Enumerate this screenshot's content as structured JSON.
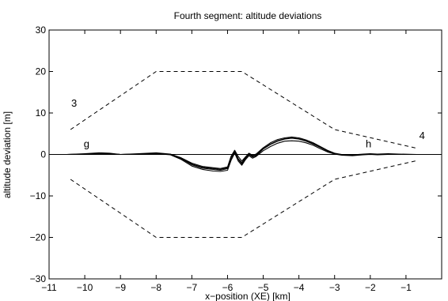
{
  "chart_data": {
    "type": "line",
    "title": "Fourth segment: altitude deviations",
    "xlabel": "x−position (XE)  [km]",
    "ylabel": "altitude deviation  [m]",
    "xlim": [
      -11,
      0
    ],
    "ylim": [
      -30,
      30
    ],
    "x_ticks": [
      -11,
      -10,
      -9,
      -8,
      -7,
      -6,
      -5,
      -4,
      -3,
      -2,
      -1
    ],
    "x_tick_labels": [
      "−11",
      "−10",
      "−9",
      "−8",
      "−7",
      "−6",
      "−5",
      "−4",
      "−3",
      "−2",
      "−1"
    ],
    "y_ticks": [
      -30,
      -20,
      -10,
      0,
      10,
      20,
      30
    ],
    "y_tick_labels": [
      "−30",
      "−20",
      "−10",
      "0",
      "10",
      "20",
      "30"
    ],
    "grid": false,
    "envelope": {
      "upper": {
        "x": [
          -10.4,
          -8.0,
          -5.6,
          -3.0,
          -0.7
        ],
        "y": [
          6,
          20,
          20,
          6,
          1.5
        ]
      },
      "lower": {
        "x": [
          -10.4,
          -8.0,
          -5.6,
          -3.0,
          -0.7
        ],
        "y": [
          -6,
          -20,
          -20,
          -6,
          -1.5
        ]
      }
    },
    "reference_line": {
      "y": 0
    },
    "series": [
      {
        "x": [
          -11.0,
          -10.5,
          -10.0,
          -9.6,
          -9.3,
          -9.0,
          -8.5,
          -8.0,
          -7.6,
          -7.3,
          -7.0,
          -6.7,
          -6.4,
          -6.2,
          -6.0,
          -5.9,
          -5.8,
          -5.7,
          -5.6,
          -5.5,
          -5.4,
          -5.3,
          -5.2,
          -5.0,
          -4.8,
          -4.6,
          -4.4,
          -4.2,
          -4.0,
          -3.8,
          -3.6,
          -3.4,
          -3.2,
          -3.0,
          -2.8,
          -2.5,
          -2.2,
          -2.0,
          -1.8,
          -1.5,
          -1.2,
          -0.7
        ],
        "y": [
          0,
          0,
          0.1,
          0.3,
          0.2,
          0,
          0.1,
          0.3,
          0,
          -1.0,
          -2.5,
          -3.3,
          -3.6,
          -3.8,
          -3.4,
          -1.0,
          0.6,
          -1.2,
          -2.3,
          -1.0,
          0,
          -0.6,
          -0.3,
          1.3,
          2.4,
          3.2,
          3.7,
          3.9,
          3.7,
          3.2,
          2.5,
          1.7,
          0.8,
          0.2,
          -0.1,
          -0.2,
          0,
          0.1,
          0,
          0.1,
          0,
          0
        ]
      },
      {
        "x": [
          -11.0,
          -10.5,
          -10.0,
          -9.6,
          -9.3,
          -9.0,
          -8.5,
          -8.0,
          -7.6,
          -7.3,
          -7.0,
          -6.7,
          -6.4,
          -6.2,
          -6.0,
          -5.9,
          -5.8,
          -5.7,
          -5.6,
          -5.5,
          -5.4,
          -5.3,
          -5.2,
          -5.0,
          -4.8,
          -4.6,
          -4.4,
          -4.2,
          -4.0,
          -3.8,
          -3.6,
          -3.4,
          -3.2,
          -3.0,
          -2.8,
          -2.5,
          -2.2,
          -2.0,
          -1.8,
          -1.5,
          -1.2,
          -0.7
        ],
        "y": [
          0,
          0,
          0.2,
          0.4,
          0.3,
          0,
          0.2,
          0.4,
          0.1,
          -0.8,
          -2.1,
          -2.9,
          -3.2,
          -3.4,
          -3.0,
          -0.4,
          1.0,
          -0.5,
          -1.6,
          -0.6,
          0.3,
          -0.2,
          0.1,
          1.6,
          2.8,
          3.6,
          4.0,
          4.2,
          4.0,
          3.5,
          2.8,
          1.9,
          1.0,
          0.3,
          0,
          -0.1,
          0.1,
          0.2,
          0.1,
          0.2,
          0.1,
          0
        ]
      },
      {
        "x": [
          -11.0,
          -10.5,
          -10.0,
          -9.6,
          -9.3,
          -9.0,
          -8.5,
          -8.0,
          -7.6,
          -7.3,
          -7.0,
          -6.7,
          -6.4,
          -6.2,
          -6.0,
          -5.9,
          -5.8,
          -5.7,
          -5.6,
          -5.5,
          -5.4,
          -5.3,
          -5.2,
          -5.0,
          -4.8,
          -4.6,
          -4.4,
          -4.2,
          -4.0,
          -3.8,
          -3.6,
          -3.4,
          -3.2,
          -3.0,
          -2.8,
          -2.5,
          -2.2,
          -2.0,
          -1.8,
          -1.5,
          -1.2,
          -0.7
        ],
        "y": [
          0,
          0,
          0,
          0.2,
          0.1,
          0,
          0,
          0.2,
          -0.1,
          -1.2,
          -2.8,
          -3.6,
          -4.0,
          -4.1,
          -3.8,
          -1.4,
          0.3,
          -1.6,
          -2.6,
          -1.3,
          -0.3,
          -0.9,
          -0.5,
          0.9,
          1.9,
          2.7,
          3.2,
          3.3,
          3.2,
          2.8,
          2.2,
          1.4,
          0.6,
          0.1,
          -0.2,
          -0.3,
          -0.1,
          0,
          -0.1,
          0,
          0,
          0
        ]
      },
      {
        "x": [
          -11.0,
          -10.5,
          -10.0,
          -9.6,
          -9.3,
          -9.0,
          -8.5,
          -8.0,
          -7.6,
          -7.3,
          -7.0,
          -6.7,
          -6.4,
          -6.2,
          -6.0,
          -5.9,
          -5.8,
          -5.7,
          -5.6,
          -5.5,
          -5.4,
          -5.3,
          -5.2,
          -5.0,
          -4.8,
          -4.6,
          -4.4,
          -4.2,
          -4.0,
          -3.8,
          -3.6,
          -3.4,
          -3.2,
          -3.0,
          -2.8,
          -2.5,
          -2.2,
          -2.0,
          -1.8,
          -1.5,
          -1.2,
          -0.7
        ],
        "y": [
          0,
          0,
          0.1,
          0.3,
          0.2,
          0,
          0.1,
          0.3,
          0,
          -0.9,
          -2.3,
          -3.1,
          -3.4,
          -3.6,
          -3.2,
          -0.8,
          0.7,
          -1.0,
          -2.0,
          -0.8,
          0.1,
          -0.4,
          -0.1,
          1.4,
          2.5,
          3.3,
          3.8,
          4.0,
          3.8,
          3.3,
          2.6,
          1.8,
          0.9,
          0.2,
          -0.1,
          -0.2,
          0,
          0.1,
          0,
          0.1,
          0,
          0
        ]
      }
    ],
    "annotations": [
      {
        "text": "3",
        "x": -10.3,
        "y": 11.5
      },
      {
        "text": "g",
        "x": -9.95,
        "y": 1.7
      },
      {
        "text": "h",
        "x": -2.05,
        "y": 1.7
      },
      {
        "text": "4",
        "x": -0.55,
        "y": 3.7
      }
    ]
  }
}
